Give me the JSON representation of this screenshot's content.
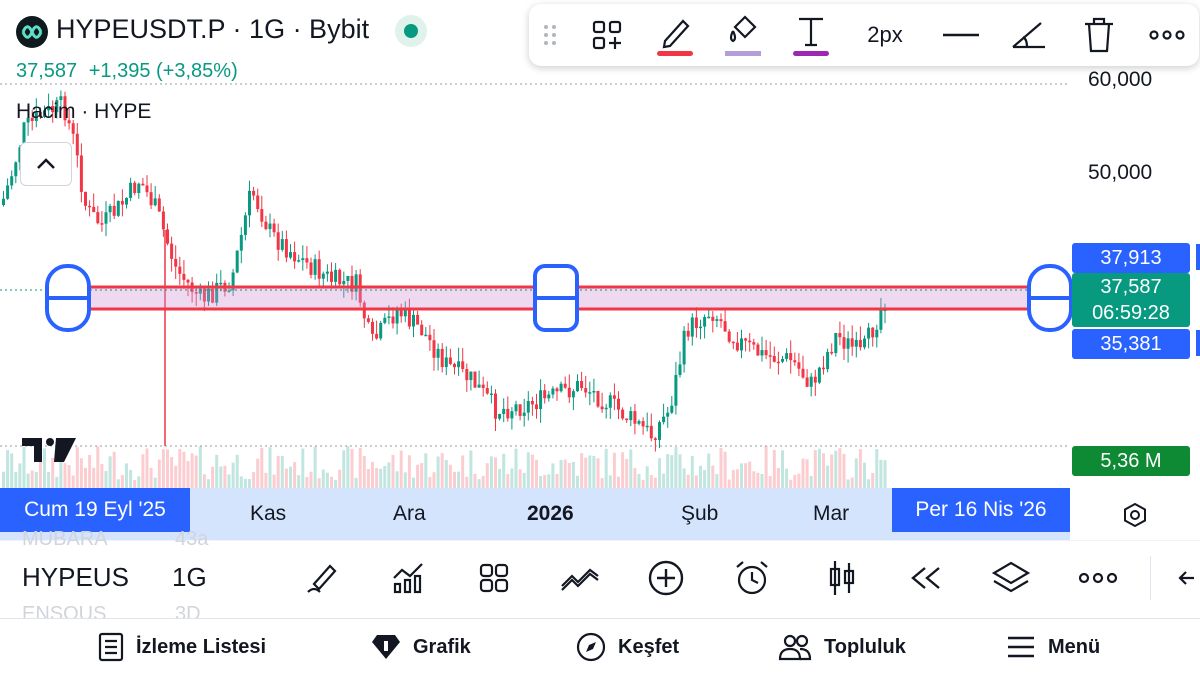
{
  "header": {
    "symbol_title": "HYPEUSDT.P · 1G · Bybit",
    "last_price": "37,587",
    "change": "+1,395 (+3,85%)",
    "volume_label": "Hacim · HYPE"
  },
  "drawing_toolbar": {
    "width_label": "2px",
    "colors": {
      "pen": "#f23645",
      "fill": "#b39ddb",
      "text": "#9c27b0"
    },
    "icons": [
      "grip-icon",
      "add-template-icon",
      "pencil-icon",
      "fill-bucket-icon",
      "text-icon",
      "line-style-icon",
      "angle-icon",
      "trash-icon",
      "more-icon"
    ]
  },
  "price_axis": {
    "labels": [
      "60,000",
      "50,000"
    ],
    "range_top": "37,913",
    "current_price": "37,587",
    "countdown": "06:59:28",
    "range_bottom": "35,381",
    "volume_value": "5,36 M"
  },
  "time_axis": {
    "start_date": "Cum 19 Eyl '25",
    "end_date": "Per 16 Nis '26",
    "labels": [
      "Kas",
      "Ara",
      "2026",
      "Şub",
      "Mar"
    ]
  },
  "chart_data": {
    "type": "candlestick",
    "symbol": "HYPEUSDT.P",
    "interval": "1G",
    "exchange": "Bybit",
    "ylim": [
      25000,
      62000
    ],
    "y_ticks": [
      60000,
      50000
    ],
    "x_range": [
      "2025-09-19",
      "2026-04-16"
    ],
    "last_price": 37587,
    "change": 1395,
    "change_percent": 3.85,
    "volume": "5,36 M",
    "rectangle_zone": {
      "top": 37913,
      "bottom": 35381,
      "from": "2025-09-19",
      "to": "2026-04-16"
    },
    "colors": {
      "up": "#089981",
      "down": "#f23645",
      "zone_fill": "#e8d5f5",
      "zone_border": "#f23645"
    },
    "grid": false
  },
  "bottom_panel": {
    "symbol": "HYPEUS",
    "interval": "1G",
    "ghost_rows": [
      "MUBARA",
      "43a",
      "ENSOUS",
      "3D"
    ],
    "icons": [
      "draw-tools-icon",
      "indicators-icon",
      "templates-icon",
      "compare-icon",
      "add-icon",
      "alert-icon",
      "bar-style-icon",
      "replay-icon",
      "layers-icon",
      "more-icon",
      "back-icon"
    ]
  },
  "nav": {
    "watchlist": "İzleme Listesi",
    "chart": "Grafik",
    "explore": "Keşfet",
    "community": "Topluluk",
    "menu": "Menü"
  }
}
